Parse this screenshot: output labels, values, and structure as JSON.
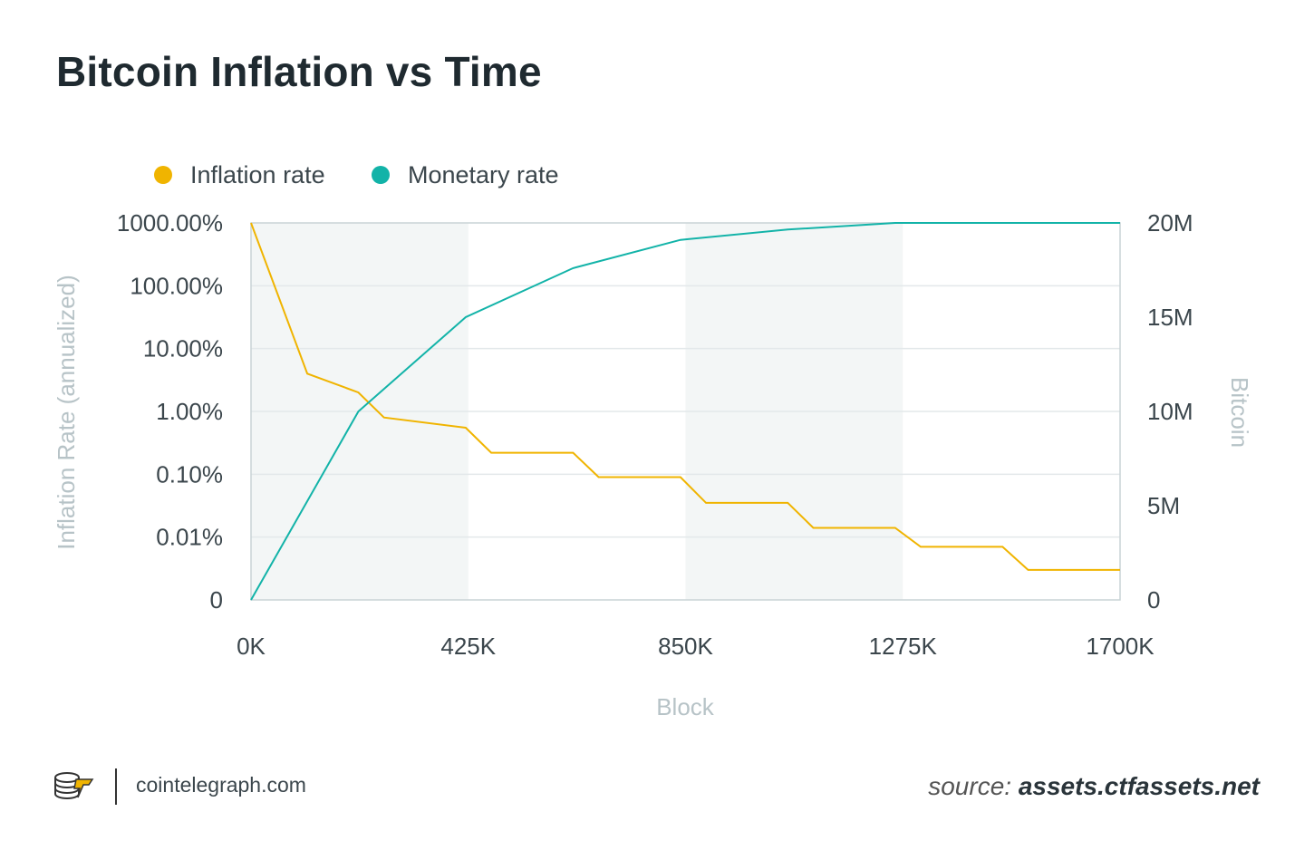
{
  "title": "Bitcoin Inflation vs Time",
  "footer": {
    "site": "cointelegraph.com",
    "source_label": "source:",
    "source_value": "assets.ctfassets.net"
  },
  "colors": {
    "inflation": "#f0b400",
    "monetary": "#12b3a8",
    "axis_label": "#b7c3c7",
    "band": "#f3f6f6"
  },
  "chart_data": {
    "type": "line",
    "title": "Bitcoin Inflation vs Time",
    "xlabel": "Block",
    "ylabel_left": "Inflation Rate (annualized)",
    "ylabel_right": "Bitcoin",
    "legend_position": "top-left",
    "grid": true,
    "xlim": [
      0,
      1700000
    ],
    "x_ticks": [
      "0K",
      "425K",
      "850K",
      "1275K",
      "1700K"
    ],
    "y_left_ticks": [
      "0",
      "0.01%",
      "0.10%",
      "1.00%",
      "10.00%",
      "100.00%",
      "1000.00%"
    ],
    "y_right_ticks": [
      "0",
      "5M",
      "10M",
      "15M",
      "20M"
    ],
    "y_right_lim": [
      0,
      20000000
    ],
    "series": [
      {
        "name": "Inflation rate",
        "axis": "left",
        "scale": "log",
        "x": [
          0,
          110000,
          210000,
          260000,
          420000,
          470000,
          630000,
          680000,
          840000,
          890000,
          1050000,
          1100000,
          1260000,
          1310000,
          1470000,
          1520000,
          1700000
        ],
        "y": [
          1000,
          4,
          2,
          0.8,
          0.55,
          0.22,
          0.22,
          0.09,
          0.09,
          0.035,
          0.035,
          0.014,
          0.014,
          0.007,
          0.007,
          0.003,
          0.003
        ]
      },
      {
        "name": "Monetary rate",
        "axis": "right",
        "x": [
          0,
          210000,
          420000,
          630000,
          840000,
          1050000,
          1260000,
          1470000,
          1700000
        ],
        "y": [
          0,
          10000000,
          15000000,
          17600000,
          19100000,
          19650000,
          20000000,
          20150000,
          20400000
        ]
      }
    ],
    "shaded_ranges": [
      [
        0,
        425000
      ],
      [
        850000,
        1275000
      ]
    ]
  }
}
